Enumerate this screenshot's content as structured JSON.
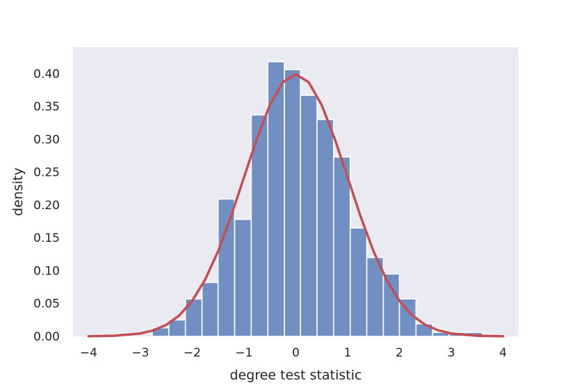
{
  "chart_data": {
    "type": "bar",
    "subtype": "histogram-with-density-curve",
    "title": "",
    "xlabel": "degree test statistic",
    "ylabel": "density",
    "xlim": [
      -4.3,
      4.3
    ],
    "ylim": [
      0,
      0.44
    ],
    "grid": false,
    "colors": {
      "plot_background": "#eaeaf2",
      "bar_fill": "#7090c4",
      "bar_edge": "#ffffff",
      "curve": "#c44e52"
    },
    "x_ticks": [
      {
        "value": -4,
        "label": "−4"
      },
      {
        "value": -3,
        "label": "−3"
      },
      {
        "value": -2,
        "label": "−2"
      },
      {
        "value": -1,
        "label": "−1"
      },
      {
        "value": 0,
        "label": "0"
      },
      {
        "value": 1,
        "label": "1"
      },
      {
        "value": 2,
        "label": "2"
      },
      {
        "value": 3,
        "label": "3"
      },
      {
        "value": 4,
        "label": "4"
      }
    ],
    "y_ticks": [
      {
        "value": 0.0,
        "label": "0.00"
      },
      {
        "value": 0.05,
        "label": "0.05"
      },
      {
        "value": 0.1,
        "label": "0.10"
      },
      {
        "value": 0.15,
        "label": "0.15"
      },
      {
        "value": 0.2,
        "label": "0.20"
      },
      {
        "value": 0.25,
        "label": "0.25"
      },
      {
        "value": 0.3,
        "label": "0.30"
      },
      {
        "value": 0.35,
        "label": "0.35"
      },
      {
        "value": 0.4,
        "label": "0.40"
      }
    ],
    "histogram": {
      "bin_edges": [
        -2.77,
        -2.45,
        -2.13,
        -1.81,
        -1.5,
        -1.18,
        -0.86,
        -0.54,
        -0.22,
        0.09,
        0.41,
        0.73,
        1.05,
        1.37,
        1.69,
        2.0,
        2.32,
        2.64,
        2.96,
        3.28,
        3.6
      ],
      "densities": [
        0.013,
        0.025,
        0.057,
        0.082,
        0.209,
        0.178,
        0.337,
        0.418,
        0.406,
        0.367,
        0.33,
        0.273,
        0.165,
        0.12,
        0.095,
        0.057,
        0.019,
        0.006,
        0.006,
        0.006
      ]
    },
    "curve": {
      "name": "",
      "x": [
        -4.0,
        -3.5,
        -3.0,
        -2.75,
        -2.5,
        -2.25,
        -2.0,
        -1.75,
        -1.5,
        -1.25,
        -1.0,
        -0.75,
        -0.5,
        -0.25,
        0.0,
        0.25,
        0.5,
        0.75,
        1.0,
        1.25,
        1.5,
        1.75,
        2.0,
        2.25,
        2.5,
        2.75,
        3.0,
        3.5,
        4.0
      ],
      "y": [
        0.0001,
        0.0009,
        0.0044,
        0.0091,
        0.0175,
        0.0317,
        0.054,
        0.0863,
        0.1295,
        0.1826,
        0.242,
        0.3011,
        0.3521,
        0.3867,
        0.3989,
        0.3867,
        0.3521,
        0.3011,
        0.242,
        0.1826,
        0.1295,
        0.0863,
        0.054,
        0.0317,
        0.0175,
        0.0091,
        0.0044,
        0.0009,
        0.0001
      ]
    }
  }
}
